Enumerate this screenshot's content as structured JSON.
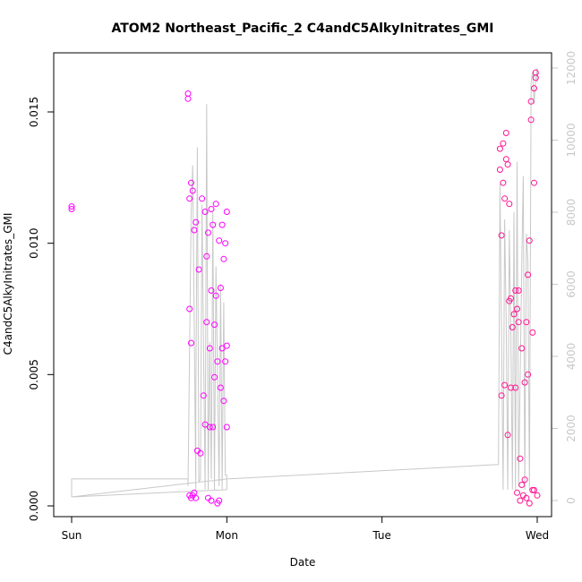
{
  "chart_data": {
    "type": "scatter",
    "title": "ATOM2 Northeast_Pacific_2 C4andC5AlkyInitrates_GMI",
    "xlabel": "Date",
    "ylabel": "C4andC5AlkyInitrates_GMI",
    "x_unit": "days since Sun 00:00",
    "xlim": [
      0,
      3.02
    ],
    "ylim": [
      0,
      0.0172
    ],
    "y2lim": [
      0,
      12300
    ],
    "x_ticks": [
      {
        "value": 0,
        "label": "Sun"
      },
      {
        "value": 1,
        "label": "Mon"
      },
      {
        "value": 2,
        "label": "Tue"
      },
      {
        "value": 3,
        "label": "Wed"
      }
    ],
    "y_ticks": [
      {
        "value": 0.0,
        "label": "0.000"
      },
      {
        "value": 0.005,
        "label": "0.005"
      },
      {
        "value": 0.01,
        "label": "0.010"
      },
      {
        "value": 0.015,
        "label": "0.015"
      }
    ],
    "y2_ticks": [
      {
        "value": 0,
        "label": "0"
      },
      {
        "value": 2000,
        "label": "2000"
      },
      {
        "value": 4000,
        "label": "4000"
      },
      {
        "value": 6000,
        "label": "6000"
      },
      {
        "value": 8000,
        "label": "8000"
      },
      {
        "value": 10000,
        "label": "10000"
      },
      {
        "value": 12000,
        "label": "12000"
      }
    ],
    "series": [
      {
        "color": "#ff00ff",
        "marker": "open-circle",
        "x": [
          0,
          0,
          0.75,
          0.75,
          0.76,
          0.76,
          0.76,
          0.77,
          0.77,
          0.77,
          0.78,
          0.78,
          0.79,
          0.79,
          0.8,
          0.8,
          0.81,
          0.82,
          0.83,
          0.84,
          0.85,
          0.86,
          0.86,
          0.87,
          0.87,
          0.88,
          0.88,
          0.89,
          0.89,
          0.9,
          0.9,
          0.9,
          0.91,
          0.91,
          0.92,
          0.92,
          0.93,
          0.93,
          0.94,
          0.94,
          0.95,
          0.95,
          0.96,
          0.96,
          0.97,
          0.97,
          0.98,
          0.98,
          0.99,
          0.99,
          1.0,
          1.0,
          1.0
        ],
        "y": [
          0.0114,
          0.0113,
          0.0157,
          0.0155,
          0.0004,
          0.0117,
          0.0075,
          0.0003,
          0.0123,
          0.0062,
          0.0004,
          0.012,
          0.0005,
          0.0105,
          0.0003,
          0.0108,
          0.0021,
          0.009,
          0.002,
          0.0117,
          0.0042,
          0.0112,
          0.0031,
          0.0095,
          0.007,
          0.0003,
          0.0104,
          0.003,
          0.006,
          0.0113,
          0.0002,
          0.0082,
          0.003,
          0.0107,
          0.0069,
          0.0049,
          0.0115,
          0.008,
          0.0001,
          0.0055,
          0.0101,
          0.0002,
          0.0083,
          0.0045,
          0.0107,
          0.006,
          0.004,
          0.0094,
          0.0055,
          0.01,
          0.0112,
          0.0061,
          0.003
        ]
      },
      {
        "color": "#ff1493",
        "marker": "open-circle",
        "x": [
          2.76,
          2.76,
          2.77,
          2.77,
          2.78,
          2.78,
          2.79,
          2.79,
          2.8,
          2.8,
          2.81,
          2.81,
          2.82,
          2.82,
          2.83,
          2.83,
          2.84,
          2.85,
          2.86,
          2.86,
          2.87,
          2.87,
          2.88,
          2.88,
          2.89,
          2.89,
          2.9,
          2.9,
          2.91,
          2.92,
          2.92,
          2.93,
          2.93,
          2.94,
          2.94,
          2.95,
          2.95,
          2.96,
          2.96,
          2.97,
          2.97,
          2.98,
          2.98,
          2.98,
          2.99,
          2.99,
          3.0
        ],
        "y": [
          0.0136,
          0.0128,
          0.0042,
          0.0103,
          0.0123,
          0.0138,
          0.0117,
          0.0046,
          0.0142,
          0.0132,
          0.013,
          0.0027,
          0.0115,
          0.0078,
          0.0079,
          0.0045,
          0.0068,
          0.0073,
          0.0045,
          0.0082,
          0.0005,
          0.0075,
          0.007,
          0.0082,
          0.0002,
          0.0018,
          0.0008,
          0.006,
          0.0004,
          0.001,
          0.0047,
          0.0003,
          0.007,
          0.0088,
          0.005,
          0.0001,
          0.0101,
          0.0154,
          0.0147,
          0.0006,
          0.0066,
          0.0159,
          0.0123,
          0.0006,
          0.0165,
          0.0163,
          0.0004
        ]
      },
      {
        "color": "#c8c8c8",
        "marker": "line",
        "axis": "right",
        "x": [
          0,
          0,
          0.75,
          0.75,
          0.77,
          0.78,
          0.8,
          0.8,
          0.81,
          0.82,
          0.83,
          0.84,
          0.86,
          0.87,
          0.88,
          0.88,
          0.89,
          0.9,
          0.91,
          0.92,
          0.93,
          0.95,
          0.96,
          0.97,
          0.98,
          0.99,
          1.0,
          1.0,
          0,
          0,
          1.0,
          2.75,
          2.76,
          2.78,
          2.79,
          2.8,
          2.81,
          2.82,
          2.83,
          2.84,
          2.85,
          2.86,
          2.87,
          2.88,
          2.9,
          2.91,
          2.92,
          2.93,
          2.94,
          2.95,
          2.96,
          2.96,
          2.97,
          2.98,
          2.99,
          3.0,
          3.0
        ],
        "y": [
          100,
          600,
          600,
          400,
          8000,
          9300,
          300,
          2600,
          9800,
          500,
          600,
          8200,
          300,
          11000,
          500,
          300,
          4400,
          600,
          8000,
          300,
          6500,
          400,
          6000,
          300,
          5500,
          700,
          700,
          300,
          100,
          100,
          600,
          1000,
          8800,
          300,
          7800,
          5000,
          300,
          7500,
          4800,
          300,
          8000,
          300,
          9400,
          400,
          6500,
          9000,
          300,
          7400,
          6600,
          300,
          11100,
          11600,
          11900,
          11000,
          11700,
          12000,
          11600
        ]
      }
    ]
  }
}
